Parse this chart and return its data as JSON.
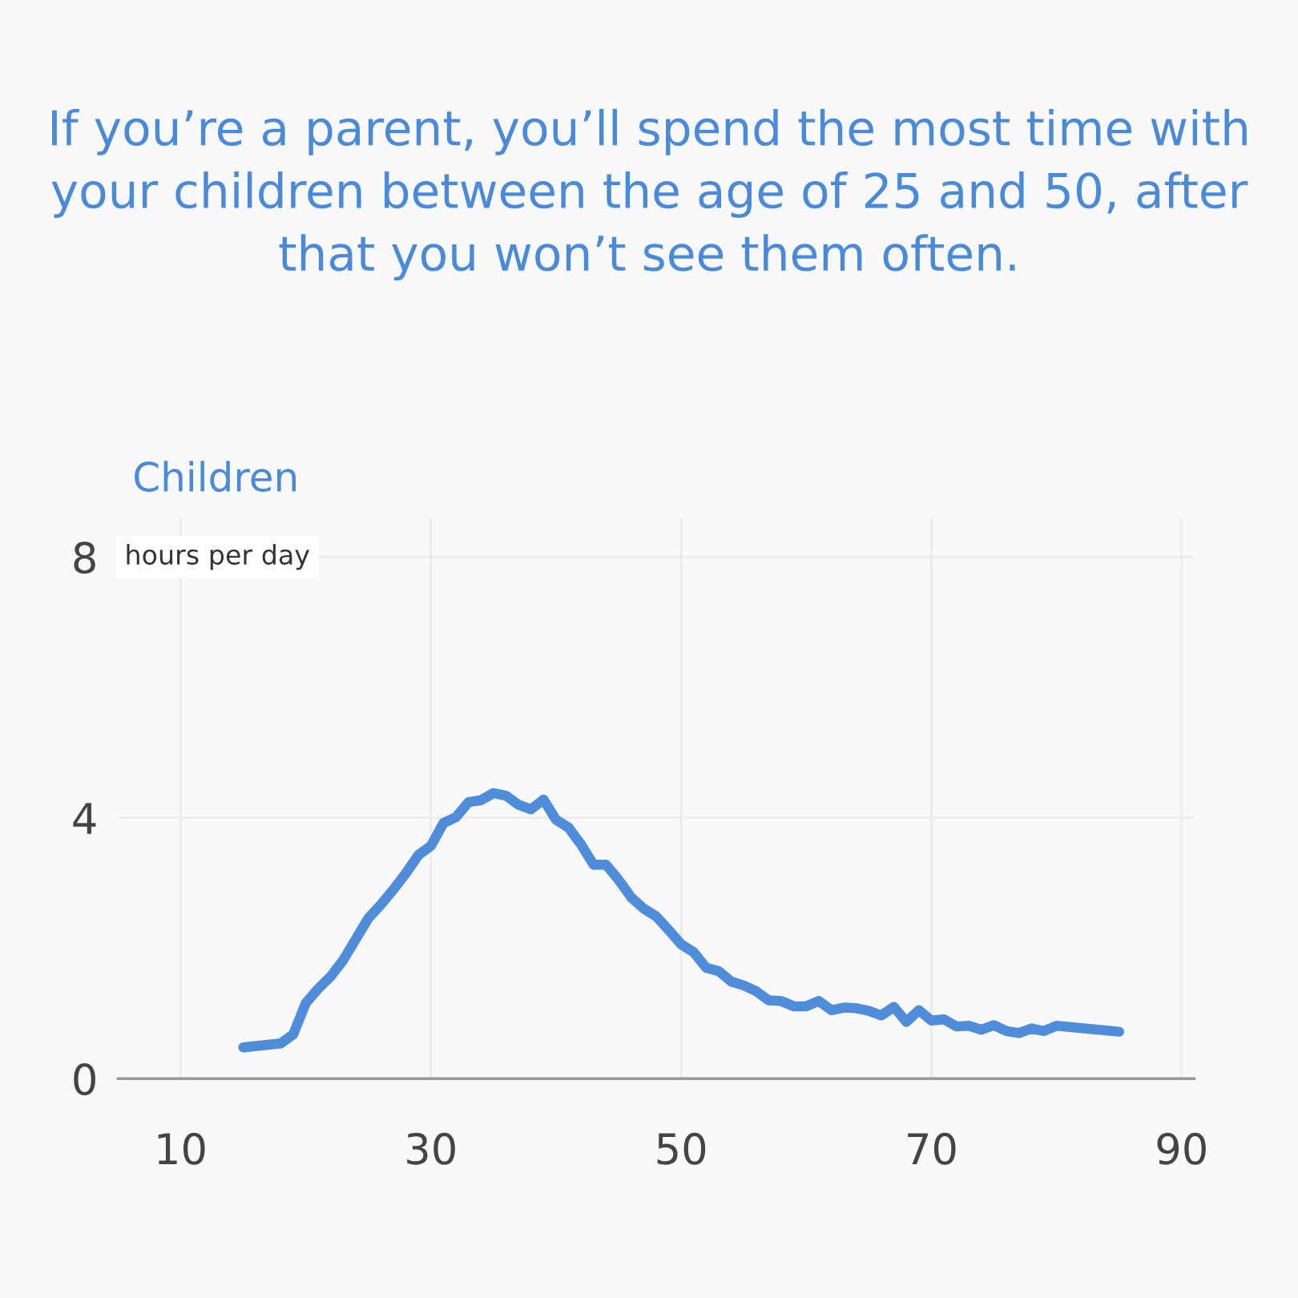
{
  "chart_data": {
    "type": "line",
    "title": "If you’re a parent, you’ll spend the most time with your children between the age of 25 and 50, after that you won’t see them often.",
    "subtitle": "Children",
    "ylabel": "hours per day",
    "x": [
      15,
      16.5,
      18,
      19,
      20,
      21,
      22,
      23,
      24,
      25,
      26,
      27,
      28,
      29,
      30,
      31,
      32,
      33,
      34,
      35,
      36,
      37,
      38,
      39,
      40,
      41,
      42,
      43,
      44,
      45,
      46,
      47,
      48,
      49,
      50,
      51,
      52,
      53,
      54,
      55,
      56,
      57,
      58,
      59,
      60,
      61,
      62,
      63,
      64,
      65,
      66,
      67,
      68,
      69,
      70,
      71,
      72,
      73,
      74,
      75,
      76,
      77,
      78,
      79,
      80,
      85
    ],
    "series": [
      {
        "color": "#4f8cd9",
        "values": [
          0.48,
          0.51,
          0.54,
          0.68,
          1.16,
          1.38,
          1.57,
          1.82,
          2.14,
          2.46,
          2.67,
          2.9,
          3.15,
          3.43,
          3.57,
          3.92,
          4.01,
          4.24,
          4.27,
          4.38,
          4.34,
          4.2,
          4.13,
          4.28,
          3.97,
          3.85,
          3.59,
          3.28,
          3.28,
          3.05,
          2.78,
          2.61,
          2.49,
          2.28,
          2.06,
          1.94,
          1.7,
          1.65,
          1.49,
          1.43,
          1.34,
          1.2,
          1.19,
          1.11,
          1.11,
          1.19,
          1.05,
          1.09,
          1.08,
          1.04,
          0.97,
          1.1,
          0.87,
          1.05,
          0.89,
          0.91,
          0.8,
          0.81,
          0.75,
          0.82,
          0.73,
          0.7,
          0.77,
          0.73,
          0.81,
          0.72
        ]
      }
    ],
    "xlim": [
      5,
      91
    ],
    "xticks": [
      10,
      30,
      50,
      70,
      90
    ],
    "ylim": [
      0,
      8.6
    ],
    "yticks": [
      0,
      4,
      8
    ],
    "grid": true,
    "line_style": "solid",
    "legend": false
  }
}
